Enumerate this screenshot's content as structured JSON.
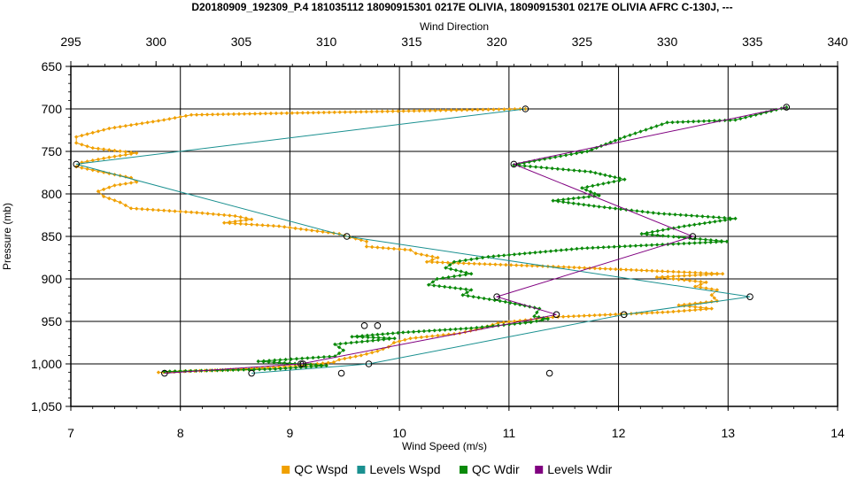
{
  "chart_data": {
    "type": "line",
    "title": "D20180909_192309_P.4 181035112 18090915301 0217E OLIVIA, 18090915301 0217E OLIVIA AFRC C-130J, ---",
    "xlabel": "Wind Speed (m/s)",
    "x2label": "Wind Direction",
    "ylabel": "Pressure (mb)",
    "xlim": [
      7,
      14
    ],
    "x2lim": [
      295,
      340
    ],
    "ylim": [
      650,
      1050
    ],
    "y_inverted": true,
    "grid": true,
    "legend_position": "bottom",
    "x_ticks": [
      "7",
      "8",
      "9",
      "10",
      "11",
      "12",
      "13",
      "14"
    ],
    "x2_ticks": [
      "295",
      "300",
      "305",
      "310",
      "315",
      "320",
      "325",
      "330",
      "335",
      "340"
    ],
    "y_ticks": [
      "650",
      "700",
      "750",
      "800",
      "850",
      "900",
      "950",
      "1,000",
      "1,050"
    ],
    "series": [
      {
        "name": "QC Wspd",
        "axis": "wspd",
        "color": "#f0a000",
        "marker": "diamond",
        "points": [
          [
            11.15,
            700
          ],
          [
            8.1,
            707
          ],
          [
            7.85,
            713
          ],
          [
            7.6,
            718
          ],
          [
            7.35,
            723
          ],
          [
            7.2,
            728
          ],
          [
            7.05,
            733
          ],
          [
            7.05,
            740
          ],
          [
            7.2,
            746
          ],
          [
            7.6,
            752
          ],
          [
            7.35,
            757
          ],
          [
            7.1,
            763
          ],
          [
            7.05,
            768
          ],
          [
            7.2,
            772
          ],
          [
            7.35,
            776
          ],
          [
            7.55,
            781
          ],
          [
            7.6,
            786
          ],
          [
            7.4,
            790
          ],
          [
            7.25,
            797
          ],
          [
            7.3,
            803
          ],
          [
            7.45,
            810
          ],
          [
            7.55,
            817
          ],
          [
            8.15,
            822
          ],
          [
            8.5,
            826
          ],
          [
            8.65,
            830
          ],
          [
            8.4,
            834
          ],
          [
            8.9,
            838
          ],
          [
            9.2,
            843
          ],
          [
            9.45,
            847
          ],
          [
            9.55,
            851
          ],
          [
            9.7,
            856
          ],
          [
            9.7,
            862
          ],
          [
            10.1,
            866
          ],
          [
            10.15,
            870
          ],
          [
            10.35,
            875
          ],
          [
            10.25,
            880
          ],
          [
            11.5,
            886
          ],
          [
            12.4,
            891
          ],
          [
            12.95,
            894
          ],
          [
            12.35,
            898
          ],
          [
            12.8,
            904
          ],
          [
            12.7,
            909
          ],
          [
            12.9,
            913
          ],
          [
            12.85,
            919
          ],
          [
            12.9,
            926
          ],
          [
            12.55,
            931
          ],
          [
            12.85,
            935
          ],
          [
            12.45,
            939
          ],
          [
            11.4,
            945
          ],
          [
            10.9,
            952
          ],
          [
            10.75,
            958
          ],
          [
            10.55,
            964
          ],
          [
            10.1,
            970
          ],
          [
            9.95,
            975
          ],
          [
            9.9,
            980
          ],
          [
            9.8,
            985
          ],
          [
            9.65,
            990
          ],
          [
            9.45,
            995
          ],
          [
            9.4,
            998
          ],
          [
            9.1,
            1002
          ],
          [
            8.6,
            1006
          ],
          [
            7.8,
            1010
          ]
        ]
      },
      {
        "name": "Levels Wspd",
        "axis": "wspd",
        "color": "#1a9090",
        "marker": "circle",
        "points": [
          [
            11.15,
            700
          ],
          [
            7.05,
            765
          ],
          [
            9.52,
            850
          ],
          [
            13.2,
            921
          ],
          [
            12.05,
            942
          ],
          [
            9.72,
            1000
          ],
          [
            8.65,
            1011
          ]
        ]
      },
      {
        "name": "QC Wdir",
        "axis": "wdir",
        "color": "#0a8a0a",
        "marker": "diamond",
        "points": [
          [
            337.0,
            698
          ],
          [
            334.0,
            713
          ],
          [
            330.0,
            716
          ],
          [
            327.5,
            733
          ],
          [
            325.3,
            750
          ],
          [
            322.5,
            760
          ],
          [
            321.0,
            766
          ],
          [
            325.5,
            774
          ],
          [
            327.5,
            783
          ],
          [
            325.0,
            793
          ],
          [
            326.0,
            802
          ],
          [
            323.3,
            808
          ],
          [
            326.0,
            815
          ],
          [
            329.5,
            823
          ],
          [
            334.0,
            829
          ],
          [
            331.0,
            838
          ],
          [
            328.5,
            847
          ],
          [
            333.5,
            856
          ],
          [
            325.0,
            864
          ],
          [
            319.5,
            874
          ],
          [
            317.5,
            880
          ],
          [
            317.0,
            887
          ],
          [
            318.5,
            894
          ],
          [
            316.5,
            900
          ],
          [
            316.0,
            907
          ],
          [
            318.5,
            913
          ],
          [
            318.0,
            919
          ],
          [
            320.5,
            927
          ],
          [
            322.5,
            935
          ],
          [
            322.2,
            944
          ],
          [
            323.0,
            947
          ],
          [
            322.0,
            951
          ],
          [
            318.5,
            958
          ],
          [
            314.5,
            963
          ],
          [
            311.5,
            968
          ],
          [
            314.0,
            970
          ],
          [
            310.5,
            977
          ],
          [
            311.0,
            984
          ],
          [
            310.5,
            991
          ],
          [
            306.0,
            997
          ],
          [
            310.0,
            1002
          ],
          [
            307.0,
            1006
          ],
          [
            300.5,
            1009
          ]
        ]
      },
      {
        "name": "Levels Wdir",
        "axis": "wdir",
        "color": "#800080",
        "marker": "circle",
        "points": [
          [
            337.0,
            698
          ],
          [
            321.0,
            765
          ],
          [
            331.5,
            850
          ],
          [
            320.0,
            921
          ],
          [
            323.5,
            942
          ],
          [
            308.5,
            1000
          ],
          [
            300.5,
            1011
          ]
        ]
      }
    ],
    "stray_points_wspd": [
      [
        9.68,
        955
      ],
      [
        9.8,
        955
      ],
      [
        9.12,
        1000
      ],
      [
        9.47,
        1011
      ],
      [
        11.37,
        1011
      ]
    ]
  }
}
